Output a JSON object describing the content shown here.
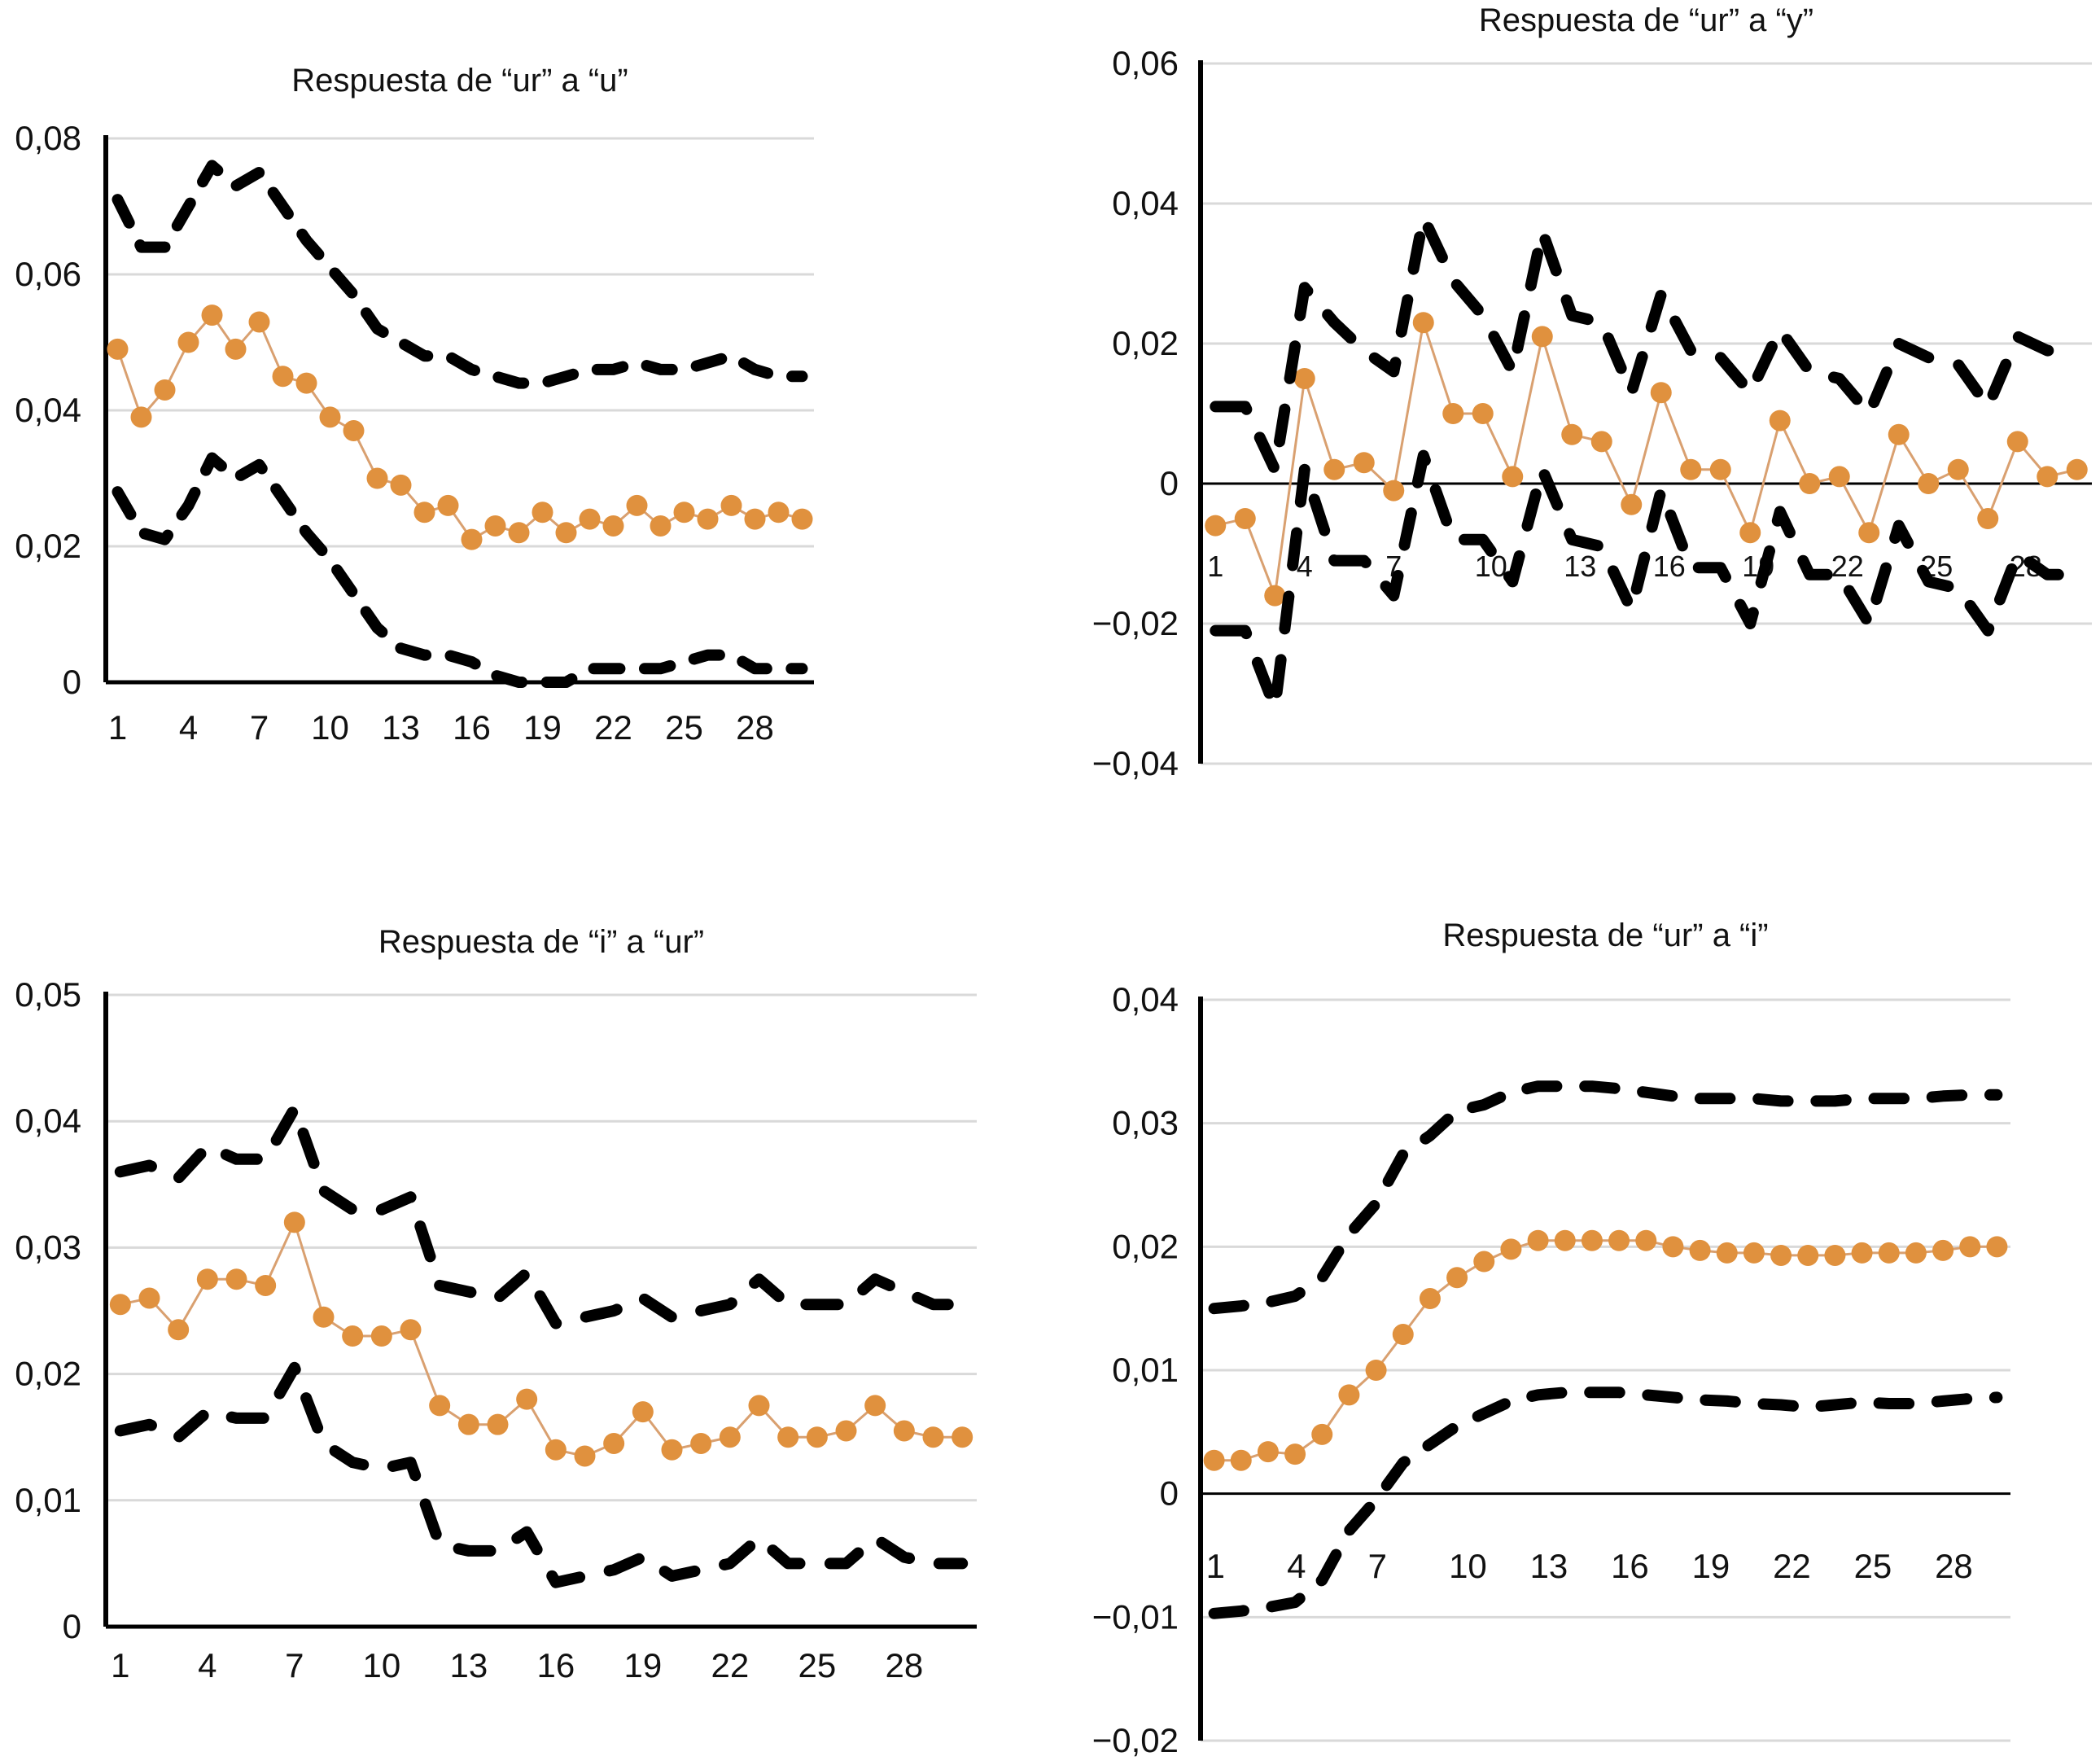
{
  "chart_data": [
    {
      "type": "line",
      "title": "Respuesta de “ur” a “u”",
      "xlabel": "",
      "ylabel": "",
      "x": [
        1,
        2,
        3,
        4,
        5,
        6,
        7,
        8,
        9,
        10,
        11,
        12,
        13,
        14,
        15,
        16,
        17,
        18,
        19,
        20,
        21,
        22,
        23,
        24,
        25,
        26,
        27,
        28,
        29,
        30
      ],
      "x_tick_labels": [
        "1",
        "4",
        "7",
        "10",
        "13",
        "16",
        "19",
        "22",
        "25",
        "28"
      ],
      "ylim": [
        0,
        0.08
      ],
      "y_ticks": [
        0,
        0.02,
        0.04,
        0.06,
        0.08
      ],
      "y_tick_labels": [
        "0",
        "0,02",
        "0,04",
        "0,06",
        "0,08"
      ],
      "grid": true,
      "zero_line": false,
      "series": [
        {
          "name": "response",
          "style": "orange-line-markers",
          "values": [
            0.049,
            0.039,
            0.043,
            0.05,
            0.054,
            0.049,
            0.053,
            0.045,
            0.044,
            0.039,
            0.037,
            0.03,
            0.029,
            0.025,
            0.026,
            0.021,
            0.023,
            0.022,
            0.025,
            0.022,
            0.024,
            0.023,
            0.026,
            0.023,
            0.025,
            0.024,
            0.026,
            0.024,
            0.025,
            0.024
          ]
        },
        {
          "name": "upper-band",
          "style": "black-dashed",
          "values": [
            0.071,
            0.064,
            0.064,
            0.07,
            0.076,
            0.073,
            0.075,
            0.07,
            0.065,
            0.061,
            0.057,
            0.052,
            0.05,
            0.048,
            0.048,
            0.046,
            0.045,
            0.044,
            0.044,
            0.045,
            0.046,
            0.046,
            0.047,
            0.046,
            0.046,
            0.047,
            0.048,
            0.046,
            0.045,
            0.045
          ]
        },
        {
          "name": "lower-band",
          "style": "black-dashed",
          "values": [
            0.028,
            0.022,
            0.021,
            0.026,
            0.033,
            0.03,
            0.032,
            0.027,
            0.022,
            0.018,
            0.013,
            0.008,
            0.005,
            0.004,
            0.004,
            0.003,
            0.001,
            0.0,
            0.0,
            0.0,
            0.002,
            0.002,
            0.002,
            0.002,
            0.003,
            0.004,
            0.004,
            0.002,
            0.002,
            0.002
          ]
        }
      ]
    },
    {
      "type": "line",
      "title": "Respuesta de “ur” a “y”",
      "xlabel": "",
      "ylabel": "",
      "x": [
        1,
        2,
        3,
        4,
        5,
        6,
        7,
        8,
        9,
        10,
        11,
        12,
        13,
        14,
        15,
        16,
        17,
        18,
        19,
        20,
        21,
        22,
        23,
        24,
        25,
        26,
        27,
        28,
        29,
        30
      ],
      "x_tick_labels": [
        "1",
        "4",
        "7",
        "10",
        "13",
        "16",
        "19",
        "22",
        "25",
        "28"
      ],
      "ylim": [
        -0.04,
        0.06
      ],
      "y_ticks": [
        -0.04,
        -0.02,
        0,
        0.02,
        0.04,
        0.06
      ],
      "y_tick_labels": [
        "−0,04",
        "−0,02",
        "0",
        "0,02",
        "0,04",
        "0,06"
      ],
      "grid": true,
      "zero_line": true,
      "series": [
        {
          "name": "response",
          "style": "orange-line-markers",
          "values": [
            -0.006,
            -0.005,
            -0.016,
            0.015,
            0.002,
            0.003,
            -0.001,
            0.023,
            0.01,
            0.01,
            0.001,
            0.021,
            0.007,
            0.006,
            -0.003,
            0.013,
            0.002,
            0.002,
            -0.007,
            0.009,
            0.0,
            0.001,
            -0.007,
            0.007,
            0.0,
            0.002,
            -0.005,
            0.006,
            0.001,
            0.002
          ]
        },
        {
          "name": "upper-band",
          "style": "black-dashed",
          "values": [
            0.011,
            0.011,
            0.002,
            0.028,
            0.023,
            0.019,
            0.016,
            0.038,
            0.029,
            0.024,
            0.016,
            0.036,
            0.024,
            0.023,
            0.013,
            0.027,
            0.019,
            0.018,
            0.013,
            0.022,
            0.016,
            0.015,
            0.01,
            0.02,
            0.018,
            0.017,
            0.011,
            0.021,
            0.019,
            0.019
          ]
        },
        {
          "name": "lower-band",
          "style": "black-dashed",
          "values": [
            -0.021,
            -0.021,
            -0.032,
            0.002,
            -0.011,
            -0.011,
            -0.016,
            0.004,
            -0.008,
            -0.008,
            -0.014,
            0.002,
            -0.008,
            -0.009,
            -0.018,
            -0.001,
            -0.012,
            -0.012,
            -0.02,
            -0.004,
            -0.013,
            -0.013,
            -0.02,
            -0.006,
            -0.014,
            -0.015,
            -0.021,
            -0.01,
            -0.013,
            -0.013
          ]
        }
      ]
    },
    {
      "type": "line",
      "title": "Respuesta de “i” a “ur”",
      "xlabel": "",
      "ylabel": "",
      "x": [
        1,
        2,
        3,
        4,
        5,
        6,
        7,
        8,
        9,
        10,
        11,
        12,
        13,
        14,
        15,
        16,
        17,
        18,
        19,
        20,
        21,
        22,
        23,
        24,
        25,
        26,
        27,
        28,
        29,
        30
      ],
      "x_tick_labels": [
        "1",
        "4",
        "7",
        "10",
        "13",
        "16",
        "19",
        "22",
        "25",
        "28"
      ],
      "ylim": [
        0,
        0.05
      ],
      "y_ticks": [
        0,
        0.01,
        0.02,
        0.03,
        0.04,
        0.05
      ],
      "y_tick_labels": [
        "0",
        "0,01",
        "0,02",
        "0,03",
        "0,04",
        "0,05"
      ],
      "grid": true,
      "zero_line": false,
      "series": [
        {
          "name": "response",
          "style": "orange-line-markers",
          "values": [
            0.0255,
            0.026,
            0.0235,
            0.0275,
            0.0275,
            0.027,
            0.032,
            0.0245,
            0.023,
            0.023,
            0.0235,
            0.0175,
            0.016,
            0.016,
            0.018,
            0.014,
            0.0135,
            0.0145,
            0.017,
            0.014,
            0.0145,
            0.015,
            0.0175,
            0.015,
            0.015,
            0.0155,
            0.0175,
            0.0155,
            0.015,
            0.015
          ]
        },
        {
          "name": "upper-band",
          "style": "black-dashed",
          "values": [
            0.036,
            0.0365,
            0.0355,
            0.038,
            0.037,
            0.037,
            0.041,
            0.0345,
            0.033,
            0.033,
            0.034,
            0.027,
            0.0265,
            0.026,
            0.028,
            0.024,
            0.0245,
            0.025,
            0.026,
            0.0245,
            0.025,
            0.0255,
            0.0275,
            0.0255,
            0.0255,
            0.0255,
            0.0275,
            0.0265,
            0.0255,
            0.0255
          ]
        },
        {
          "name": "lower-band",
          "style": "black-dashed",
          "values": [
            0.0155,
            0.016,
            0.015,
            0.017,
            0.0165,
            0.0165,
            0.0205,
            0.0145,
            0.013,
            0.0125,
            0.013,
            0.0065,
            0.006,
            0.006,
            0.0075,
            0.0035,
            0.004,
            0.0045,
            0.0055,
            0.004,
            0.0045,
            0.005,
            0.007,
            0.005,
            0.005,
            0.005,
            0.007,
            0.0055,
            0.005,
            0.005
          ]
        }
      ]
    },
    {
      "type": "line",
      "title": "Respuesta de “ur” a “i”",
      "xlabel": "",
      "ylabel": "",
      "x": [
        1,
        2,
        3,
        4,
        5,
        6,
        7,
        8,
        9,
        10,
        11,
        12,
        13,
        14,
        15,
        16,
        17,
        18,
        19,
        20,
        21,
        22,
        23,
        24,
        25,
        26,
        27,
        28,
        29,
        30
      ],
      "x_tick_labels": [
        "1",
        "4",
        "7",
        "10",
        "13",
        "16",
        "19",
        "22",
        "25",
        "28"
      ],
      "ylim": [
        -0.02,
        0.04
      ],
      "y_ticks": [
        -0.02,
        -0.01,
        0,
        0.01,
        0.02,
        0.03,
        0.04
      ],
      "y_tick_labels": [
        "−0,02",
        "−0,01",
        "0",
        "0,01",
        "0,02",
        "0,03",
        "0,04"
      ],
      "grid": true,
      "zero_line": true,
      "series": [
        {
          "name": "response",
          "style": "orange-line-markers",
          "values": [
            0.0027,
            0.0027,
            0.0034,
            0.0032,
            0.0048,
            0.008,
            0.01,
            0.0129,
            0.0158,
            0.0175,
            0.0188,
            0.0198,
            0.0205,
            0.0205,
            0.0205,
            0.0205,
            0.0205,
            0.02,
            0.0197,
            0.0195,
            0.0195,
            0.0193,
            0.0193,
            0.0193,
            0.0195,
            0.0195,
            0.0195,
            0.0197,
            0.02,
            0.02
          ]
        },
        {
          "name": "upper-band",
          "style": "black-dashed",
          "values": [
            0.015,
            0.0152,
            0.0155,
            0.016,
            0.0175,
            0.021,
            0.0235,
            0.0275,
            0.029,
            0.031,
            0.0315,
            0.0325,
            0.033,
            0.033,
            0.033,
            0.0328,
            0.0325,
            0.0322,
            0.032,
            0.032,
            0.032,
            0.0318,
            0.0318,
            0.0318,
            0.032,
            0.032,
            0.032,
            0.0322,
            0.0323,
            0.0323
          ]
        },
        {
          "name": "lower-band",
          "style": "black-dashed",
          "values": [
            -0.0097,
            -0.0095,
            -0.0092,
            -0.0088,
            -0.007,
            -0.003,
            -0.0005,
            0.0025,
            0.004,
            0.0055,
            0.0065,
            0.0075,
            0.008,
            0.0082,
            0.0082,
            0.0082,
            0.008,
            0.0078,
            0.0076,
            0.0075,
            0.0073,
            0.0072,
            0.007,
            0.0072,
            0.0074,
            0.0073,
            0.0073,
            0.0075,
            0.0077,
            0.0078
          ]
        }
      ]
    }
  ],
  "colors": {
    "response": "#E0913E",
    "response_line": "#D9A070",
    "band": "#000000",
    "grid": "#D9D9D9",
    "axis": "#000000"
  }
}
